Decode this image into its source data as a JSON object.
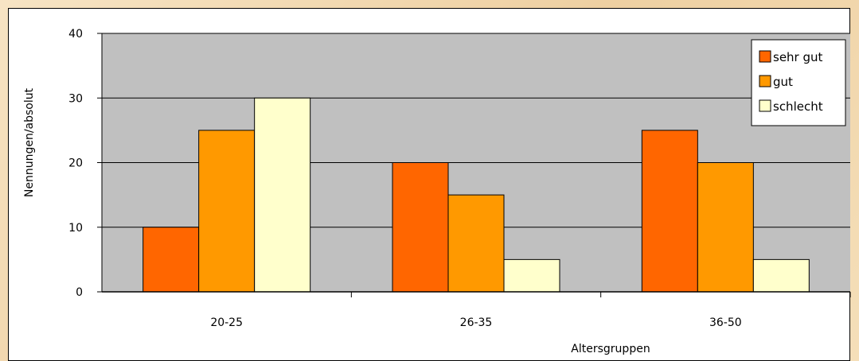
{
  "chart_data": {
    "type": "bar",
    "title": "",
    "xlabel": "Altersgruppen",
    "ylabel": "Nennungen/absolut",
    "categories": [
      "20-25",
      "26-35",
      "36-50"
    ],
    "ylim": [
      0,
      40
    ],
    "yticks": [
      "0",
      "10",
      "20",
      "30",
      "40"
    ],
    "grid": true,
    "legend_position": "top-right",
    "series": [
      {
        "name": "sehr gut",
        "values": [
          10,
          20,
          25
        ],
        "color": "#ff6600"
      },
      {
        "name": "gut",
        "values": [
          25,
          15,
          20
        ],
        "color": "#ff9900"
      },
      {
        "name": "schlecht",
        "values": [
          30,
          5,
          5
        ],
        "color": "#ffffcc"
      }
    ],
    "plot_background": "#c0c0c0"
  }
}
